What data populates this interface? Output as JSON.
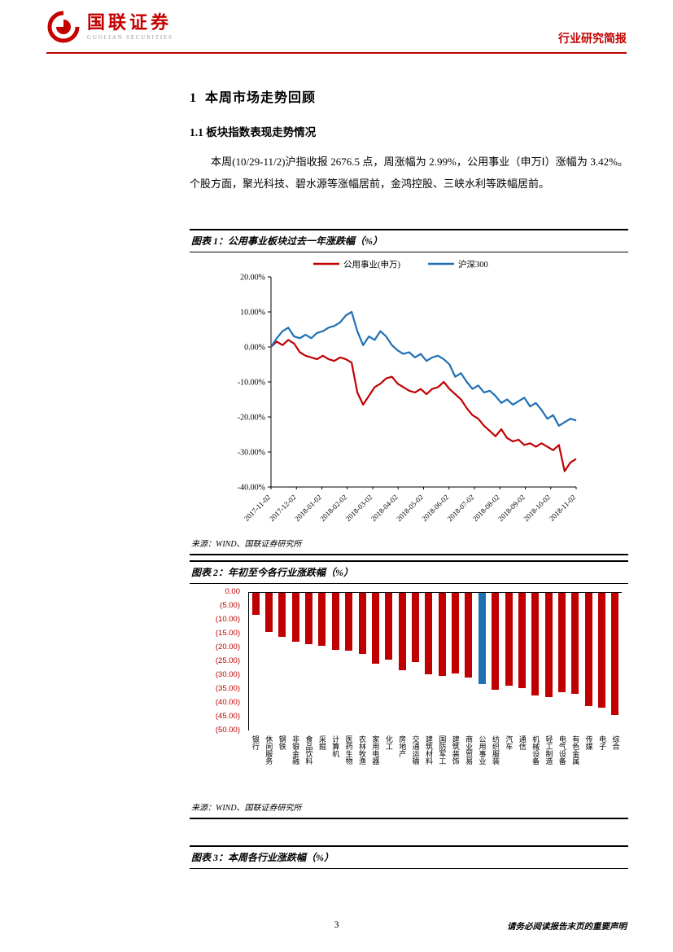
{
  "header": {
    "brand_cn": "国联证券",
    "brand_en": "GUOLIAN SECURITIES",
    "report_type": "行业研究简报",
    "accent_color": "#c00000"
  },
  "sections": {
    "h1": "1  本周市场走势回顾",
    "h2": "1.1 板块指数表现走势情况",
    "paragraph": "本周(10/29-11/2)沪指收报 2676.5 点，周涨幅为 2.99%，公用事业（申万Ⅰ）涨幅为 3.42%。个股方面，聚光科技、碧水源等涨幅居前，金鸿控股、三峡水利等跌幅居前。"
  },
  "figure1": {
    "title": "图表 1：公用事业板块过去一年涨跌幅（%）",
    "source": "来源：WIND、国联证券研究所"
  },
  "figure2": {
    "title": "图表 2：年初至今各行业涨跌幅（%）",
    "source": "来源：WIND、国联证券研究所"
  },
  "figure3": {
    "title": "图表 3：本周各行业涨跌幅（%）"
  },
  "footer": {
    "page_number": "3",
    "disclaimer": "请务必阅读报告末页的重要声明"
  },
  "chart_data": [
    {
      "type": "line",
      "title": "公用事业板块过去一年涨跌幅（%）",
      "ylim": [
        -40,
        20
      ],
      "yticks": [
        "20.00%",
        "10.00%",
        "0.00%",
        "-10.00%",
        "-20.00%",
        "-30.00%",
        "-40.00%"
      ],
      "x_tick_labels": [
        "2017-11-02",
        "2017-12-02",
        "2018-01-02",
        "2018-02-02",
        "2018-03-02",
        "2018-04-02",
        "2018-05-02",
        "2018-06-02",
        "2018-07-02",
        "2018-08-02",
        "2018-09-02",
        "2018-10-02",
        "2018-11-02"
      ],
      "legend_position": "top",
      "grid": false,
      "series": [
        {
          "name": "公用事业(申万)",
          "color": "#c00000",
          "values": [
            0,
            1.5,
            0.5,
            2,
            1,
            -1.5,
            -2.5,
            -3,
            -3.5,
            -2.5,
            -3.5,
            -4,
            -3,
            -3.5,
            -4.5,
            -13,
            -16.5,
            -14,
            -11.5,
            -10.5,
            -9,
            -8.5,
            -10.5,
            -11.5,
            -12.5,
            -13,
            -12,
            -13.5,
            -12,
            -11.5,
            -10,
            -12,
            -13.5,
            -15,
            -17.5,
            -19.5,
            -20.5,
            -22.5,
            -24,
            -25.5,
            -23.5,
            -26,
            -27,
            -26.5,
            -28,
            -27.5,
            -28.5,
            -27.5,
            -28.5,
            -29.5,
            -28,
            -35.5,
            -33,
            -32
          ]
        },
        {
          "name": "沪深300",
          "color": "#1f6fb5",
          "values": [
            0,
            2.5,
            4.5,
            5.5,
            3,
            2.5,
            3.5,
            2.5,
            4,
            4.5,
            5.5,
            6,
            7,
            9,
            10,
            4.5,
            0.5,
            3,
            2,
            4.5,
            3,
            0.5,
            -1,
            -2,
            -1.5,
            -3,
            -2,
            -4,
            -3,
            -2.5,
            -3.5,
            -5,
            -8.5,
            -7.5,
            -10,
            -12,
            -11,
            -13,
            -12.5,
            -14,
            -16,
            -15,
            -16.5,
            -15.5,
            -14.5,
            -17,
            -16,
            -18,
            -20.5,
            -19.5,
            -22.5,
            -21.5,
            -20.5,
            -21
          ]
        }
      ]
    },
    {
      "type": "bar",
      "title": "年初至今各行业涨跌幅（%）",
      "ylim": [
        -50,
        0
      ],
      "yticks": [
        "0.00",
        "(5.00)",
        "(10.00)",
        "(15.00)",
        "(20.00)",
        "(25.00)",
        "(30.00)",
        "(35.00)",
        "(40.00)",
        "(45.00)",
        "(50.00)"
      ],
      "bar_color": "#c00000",
      "highlight_color": "#1f6fb5",
      "highlight_category": "公用事业",
      "categories": [
        "银行",
        "休闲服务",
        "钢铁",
        "非银金融",
        "食品饮料",
        "采掘",
        "计算机",
        "医药生物",
        "农林牧渔",
        "家用电器",
        "化工",
        "房地产",
        "交通运输",
        "建筑材料",
        "国防军工",
        "建筑装饰",
        "商业贸易",
        "公用事业",
        "纺织服装",
        "汽车",
        "通信",
        "机械设备",
        "轻工制造",
        "电气设备",
        "有色金属",
        "传媒",
        "电子",
        "综合"
      ],
      "values": [
        -8,
        -14,
        -16,
        -17.5,
        -18.5,
        -19,
        -20.5,
        -21,
        -22,
        -25.5,
        -24,
        -28,
        -25,
        -29.5,
        -30,
        -29,
        -30.5,
        -33,
        -35,
        -33.5,
        -34.5,
        -37,
        -37.5,
        -36,
        -36.5,
        -41,
        -41.5,
        -44
      ]
    }
  ]
}
